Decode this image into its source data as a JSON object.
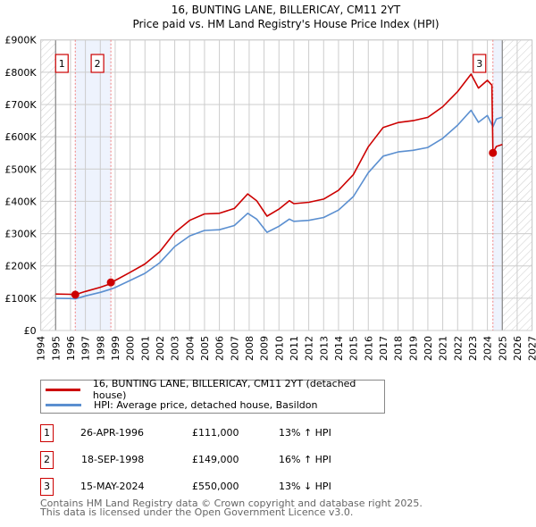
{
  "chart_data": {
    "type": "line",
    "title": "16, BUNTING LANE, BILLERICAY, CM11 2YT",
    "subtitle": "Price paid vs. HM Land Registry's House Price Index (HPI)",
    "xlim": [
      1994,
      2027
    ],
    "ylim": [
      0,
      900000
    ],
    "x_ticks": [
      "1994",
      "1995",
      "1996",
      "1997",
      "1998",
      "1999",
      "2000",
      "2001",
      "2002",
      "2003",
      "2004",
      "2005",
      "2006",
      "2007",
      "2008",
      "2009",
      "2010",
      "2011",
      "2012",
      "2013",
      "2014",
      "2015",
      "2016",
      "2017",
      "2018",
      "2019",
      "2020",
      "2021",
      "2022",
      "2023",
      "2024",
      "2025",
      "2026",
      "2027"
    ],
    "y_ticks": [
      {
        "v": 0,
        "label": "£0"
      },
      {
        "v": 100000,
        "label": "£100K"
      },
      {
        "v": 200000,
        "label": "£200K"
      },
      {
        "v": 300000,
        "label": "£300K"
      },
      {
        "v": 400000,
        "label": "£400K"
      },
      {
        "v": 500000,
        "label": "£500K"
      },
      {
        "v": 600000,
        "label": "£600K"
      },
      {
        "v": 700000,
        "label": "£700K"
      },
      {
        "v": 800000,
        "label": "£800K"
      },
      {
        "v": 900000,
        "label": "£900K"
      }
    ],
    "grid": true,
    "data_range": [
      1995,
      2025
    ],
    "series": [
      {
        "name": "16, BUNTING LANE, BILLERICAY, CM11 2YT (detached house)",
        "color": "#cc0000",
        "x": [
          1995,
          1996,
          1996.32,
          1997,
          1998,
          1998.7,
          1998.71,
          1999,
          2000,
          2001,
          2002,
          2003,
          2004,
          2005,
          2006,
          2007,
          2007.9,
          2008.5,
          2009.2,
          2010,
          2010.7,
          2011,
          2012,
          2013,
          2014,
          2015,
          2016,
          2017,
          2018,
          2019,
          2020,
          2021,
          2022,
          2022.9,
          2023.4,
          2024,
          2024.3,
          2024.37,
          2024.6,
          2025
        ],
        "y": [
          113000,
          112000,
          111000,
          121000,
          134000,
          145000,
          149000,
          155000,
          180000,
          206000,
          244000,
          303000,
          341000,
          361000,
          363000,
          378000,
          423000,
          402000,
          354000,
          376000,
          402000,
          393000,
          397000,
          407000,
          434000,
          483000,
          569000,
          629000,
          644000,
          650000,
          660000,
          693000,
          740000,
          794000,
          751000,
          775000,
          760000,
          550000,
          570000,
          576000
        ]
      },
      {
        "name": "HPI: Average price, detached house, Basildon",
        "color": "#5b8fd0",
        "x": [
          1995,
          1996,
          1996.32,
          1997,
          1998,
          1998.71,
          1999,
          2000,
          2001,
          2002,
          2003,
          2004,
          2005,
          2006,
          2007,
          2007.9,
          2008.5,
          2009.2,
          2010,
          2010.7,
          2011,
          2012,
          2013,
          2014,
          2015,
          2016,
          2017,
          2018,
          2019,
          2020,
          2021,
          2022,
          2022.9,
          2023.4,
          2024,
          2024.37,
          2024.6,
          2025
        ],
        "y": [
          100000,
          99000,
          98000,
          107000,
          118000,
          128000,
          133000,
          155000,
          177000,
          210000,
          260000,
          293000,
          310000,
          312000,
          325000,
          363000,
          345000,
          304000,
          323000,
          345000,
          338000,
          341000,
          350000,
          373000,
          415000,
          489000,
          540000,
          553000,
          558000,
          567000,
          595000,
          636000,
          682000,
          645000,
          666000,
          631000,
          655000,
          661000
        ]
      }
    ],
    "sales": [
      {
        "id": "1",
        "x": 1996.32,
        "date": "26-APR-1996",
        "price": "£111,000",
        "value": 111000,
        "hpi_diff": "13% ↑ HPI"
      },
      {
        "id": "2",
        "x": 1998.71,
        "date": "18-SEP-1998",
        "price": "£149,000",
        "value": 149000,
        "hpi_diff": "16% ↑ HPI"
      },
      {
        "id": "3",
        "x": 2024.37,
        "date": "15-MAY-2024",
        "price": "£550,000",
        "value": 550000,
        "hpi_diff": "13% ↓ HPI"
      }
    ],
    "legend_position": "below"
  },
  "footer": {
    "line1": "Contains HM Land Registry data © Crown copyright and database right 2025.",
    "line2": "This data is licensed under the Open Government Licence v3.0."
  }
}
